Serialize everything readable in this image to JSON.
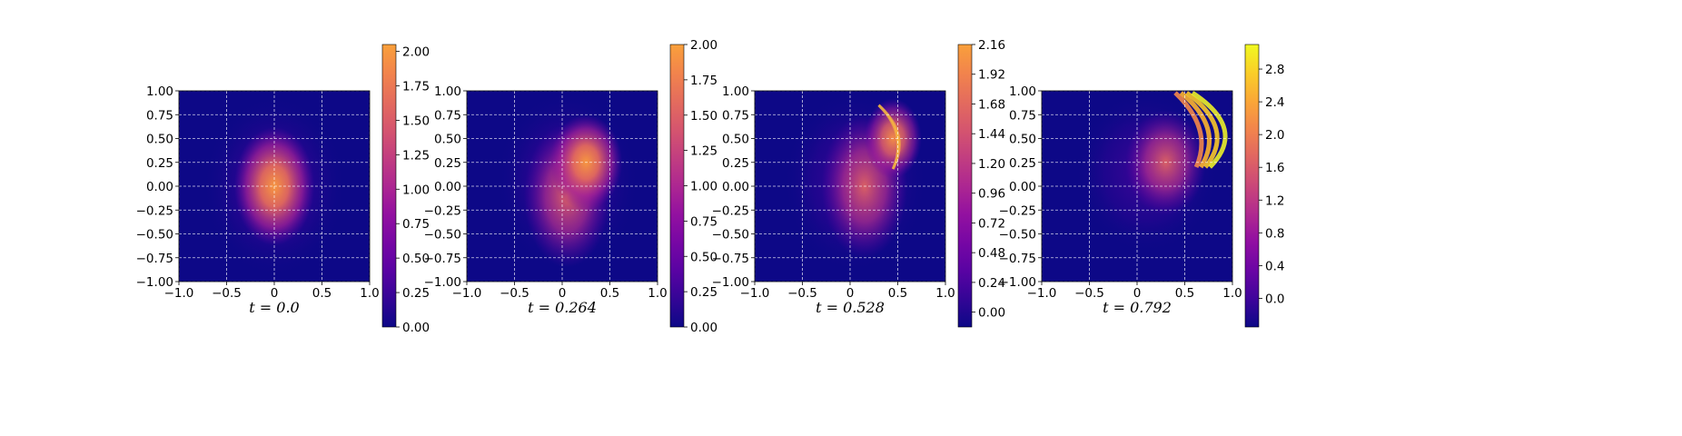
{
  "chart_data": [
    {
      "type": "heatmap",
      "label": "t = 0.0",
      "xlim": [
        -1.0,
        1.0
      ],
      "ylim": [
        -1.0,
        1.0
      ],
      "xticks": [
        "-1.0",
        "-0.5",
        "0",
        "0.5",
        "1.0"
      ],
      "yticks": [
        "1.00",
        "0.75",
        "0.50",
        "0.25",
        "0.00",
        "-0.25",
        "-0.50",
        "-0.75",
        "-1.00"
      ],
      "colorbar": {
        "min": 0.0,
        "max": 2.05,
        "ticks": [
          "0.00",
          "0.25",
          "0.50",
          "0.75",
          "1.00",
          "1.25",
          "1.50",
          "1.75",
          "2.00"
        ]
      },
      "peak": {
        "x": 0.0,
        "y": 0.0,
        "value": 2.05
      },
      "colormap": "plasma",
      "grid": true
    },
    {
      "type": "heatmap",
      "label": "t = 0.264",
      "xlim": [
        -1.0,
        1.0
      ],
      "ylim": [
        -1.0,
        1.0
      ],
      "xticks": [
        "-1.0",
        "-0.5",
        "0",
        "0.5",
        "1.0"
      ],
      "yticks": [
        "1.00",
        "0.75",
        "0.50",
        "0.25",
        "0.00",
        "-0.25",
        "-0.50",
        "-0.75",
        "-1.00"
      ],
      "colorbar": {
        "min": 0.0,
        "max": 2.0,
        "ticks": [
          "0.00",
          "0.25",
          "0.50",
          "0.75",
          "1.00",
          "1.25",
          "1.50",
          "1.75",
          "2.00"
        ]
      },
      "peak": {
        "x": 0.25,
        "y": 0.25,
        "value": 2.0
      },
      "colormap": "plasma",
      "grid": true
    },
    {
      "type": "heatmap",
      "label": "t = 0.528",
      "xlim": [
        -1.0,
        1.0
      ],
      "ylim": [
        -1.0,
        1.0
      ],
      "xticks": [
        "-1.0",
        "-0.5",
        "0",
        "0.5",
        "1.0"
      ],
      "yticks": [
        "1.00",
        "0.75",
        "0.50",
        "0.25",
        "0.00",
        "-0.25",
        "-0.50",
        "-0.75",
        "-1.00"
      ],
      "colorbar": {
        "min": -0.12,
        "max": 2.16,
        "ticks": [
          "0.00",
          "0.24",
          "0.48",
          "0.72",
          "0.96",
          "1.20",
          "1.44",
          "1.68",
          "1.92",
          "2.16"
        ]
      },
      "peak": {
        "x": 0.45,
        "y": 0.5,
        "value": 2.16
      },
      "colormap": "plasma",
      "grid": true
    },
    {
      "type": "heatmap",
      "label": "t = 0.792",
      "xlim": [
        -1.0,
        1.0
      ],
      "ylim": [
        -1.0,
        1.0
      ],
      "xticks": [
        "-1.0",
        "-0.5",
        "0",
        "0.5",
        "1.0"
      ],
      "yticks": [
        "1.00",
        "0.75",
        "0.50",
        "0.25",
        "0.00",
        "-0.25",
        "-0.50",
        "-0.75",
        "-1.00"
      ],
      "colorbar": {
        "min": -0.35,
        "max": 3.1,
        "ticks": [
          "0.0",
          "0.4",
          "0.8",
          "1.2",
          "1.6",
          "2.0",
          "2.4",
          "2.8"
        ]
      },
      "peak": {
        "x": 0.6,
        "y": 0.7,
        "value": 3.1
      },
      "colormap": "plasma",
      "grid": true
    }
  ]
}
